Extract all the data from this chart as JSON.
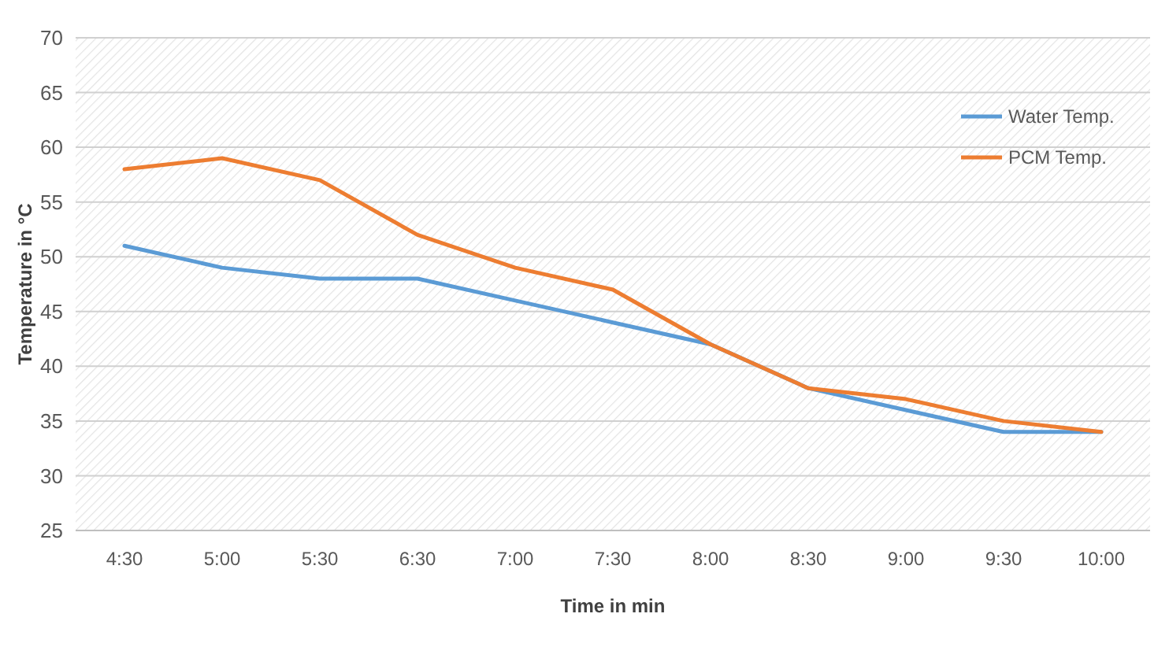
{
  "chart_data": {
    "type": "line",
    "xlabel": "Time in min",
    "ylabel": "Temperature in °C",
    "categories": [
      "4:30",
      "5:00",
      "5:30",
      "6:30",
      "7:00",
      "7:30",
      "8:00",
      "8:30",
      "9:00",
      "9:30",
      "10:00"
    ],
    "series": [
      {
        "name": "Water Temp.",
        "color": "#5b9bd5",
        "values": [
          51,
          49,
          48,
          48,
          46,
          44,
          42,
          38,
          36,
          34,
          34
        ]
      },
      {
        "name": "PCM Temp.",
        "color": "#ed7d31",
        "values": [
          58,
          59,
          57,
          52,
          49,
          47,
          42,
          38,
          37,
          35,
          34
        ]
      }
    ],
    "ylim": [
      25,
      70
    ],
    "yticks": [
      25,
      30,
      35,
      40,
      45,
      50,
      55,
      60,
      65,
      70
    ],
    "grid": "y",
    "legend": "top right",
    "marker": "none",
    "line_style": "solid"
  }
}
